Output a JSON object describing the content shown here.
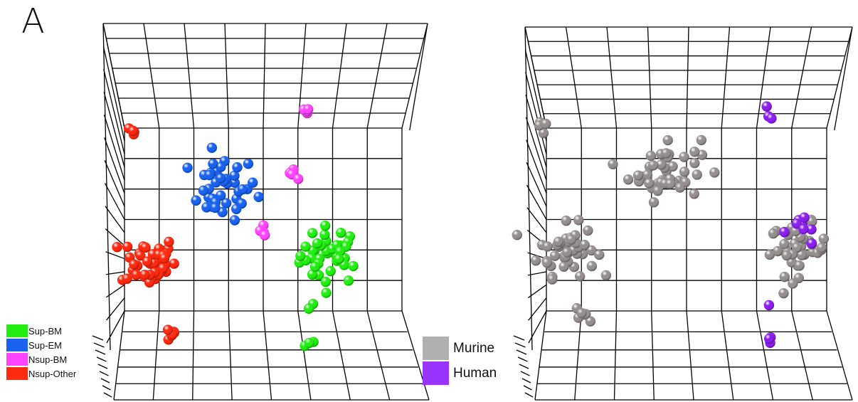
{
  "panel_label": "A",
  "chart_data": [
    {
      "type": "scatter",
      "subtype": "3d-scatter",
      "title": "",
      "grid": true,
      "legend_position": "bottom-left",
      "legend": [
        {
          "name": "Sup-BM",
          "color": "#22ee11"
        },
        {
          "name": "Sup-EM",
          "color": "#1a62f0"
        },
        {
          "name": "Nsup-BM",
          "color": "#ff44ff"
        },
        {
          "name": "Nsup-Other",
          "color": "#ff2a10"
        }
      ],
      "series": [
        {
          "name": "Sup-BM",
          "color": "#22ee11",
          "clusters": [
            {
              "cx": 0.69,
              "cy": 0.37,
              "spread": 0.09,
              "n": 40
            },
            {
              "cx": 0.62,
              "cy": 0.19,
              "spread": 0.015,
              "n": 2
            },
            {
              "cx": 0.62,
              "cy": 0.06,
              "spread": 0.015,
              "n": 3
            }
          ]
        },
        {
          "name": "Sup-EM",
          "color": "#1a62f0",
          "clusters": [
            {
              "cx": 0.34,
              "cy": 0.6,
              "spread": 0.1,
              "n": 40
            }
          ]
        },
        {
          "name": "Nsup-BM",
          "color": "#ff44ff",
          "clusters": [
            {
              "cx": 0.6,
              "cy": 0.86,
              "spread": 0.02,
              "n": 4
            },
            {
              "cx": 0.57,
              "cy": 0.64,
              "spread": 0.025,
              "n": 5
            },
            {
              "cx": 0.48,
              "cy": 0.45,
              "spread": 0.02,
              "n": 4
            }
          ]
        },
        {
          "name": "Nsup-Other",
          "color": "#ff2a10",
          "clusters": [
            {
              "cx": 0.05,
              "cy": 0.78,
              "spread": 0.02,
              "n": 4
            },
            {
              "cx": 0.1,
              "cy": 0.35,
              "spread": 0.08,
              "n": 45
            },
            {
              "cx": 0.18,
              "cy": 0.1,
              "spread": 0.03,
              "n": 6
            }
          ]
        }
      ]
    },
    {
      "type": "scatter",
      "subtype": "3d-scatter",
      "title": "",
      "grid": true,
      "legend_position": "bottom-left",
      "legend": [
        {
          "name": "Murine",
          "color": "#b0b0b0"
        },
        {
          "name": "Human",
          "color": "#9933ff"
        }
      ],
      "series": [
        {
          "name": "Murine",
          "color": "#958f8f",
          "clusters": [
            {
              "cx": 0.05,
              "cy": 0.82,
              "spread": 0.03,
              "n": 5
            },
            {
              "cx": 0.12,
              "cy": 0.4,
              "spread": 0.08,
              "n": 45
            },
            {
              "cx": 0.18,
              "cy": 0.18,
              "spread": 0.03,
              "n": 6
            },
            {
              "cx": 0.42,
              "cy": 0.68,
              "spread": 0.1,
              "n": 45
            },
            {
              "cx": 0.83,
              "cy": 0.4,
              "spread": 0.08,
              "n": 40
            }
          ]
        },
        {
          "name": "Human",
          "color": "#8b20ee",
          "clusters": [
            {
              "cx": 0.74,
              "cy": 0.87,
              "spread": 0.02,
              "n": 3
            },
            {
              "cx": 0.84,
              "cy": 0.47,
              "spread": 0.06,
              "n": 8
            },
            {
              "cx": 0.74,
              "cy": 0.21,
              "spread": 0.01,
              "n": 1
            },
            {
              "cx": 0.74,
              "cy": 0.1,
              "spread": 0.02,
              "n": 3
            }
          ]
        }
      ]
    }
  ]
}
